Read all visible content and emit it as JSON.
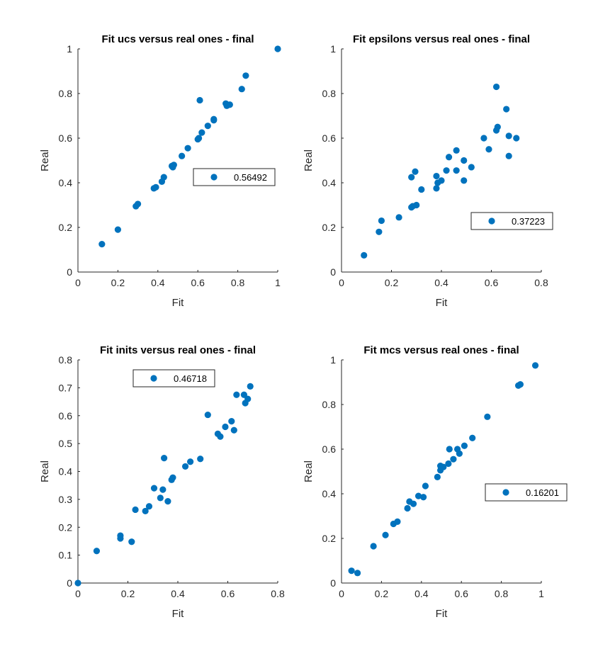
{
  "figure": {
    "background": "#ffffff",
    "marker_color": "#0072bd",
    "axis_color": "#262626"
  },
  "chart_data": [
    {
      "type": "scatter",
      "title": "Fit ucs versus real ones - final",
      "xlabel": "Fit",
      "ylabel": "Real",
      "xlim": [
        0,
        1
      ],
      "ylim": [
        0,
        1
      ],
      "xticks": [
        "0",
        "0.2",
        "0.4",
        "0.6",
        "0.8",
        "1"
      ],
      "yticks": [
        "0",
        "0.2",
        "0.4",
        "0.6",
        "0.8",
        "1"
      ],
      "legend": {
        "entries": [
          "0.56492"
        ],
        "location": "east"
      },
      "grid": false,
      "series": [
        {
          "name": "0.56492",
          "color": "#0072bd",
          "points": [
            [
              0.12,
              0.125
            ],
            [
              0.2,
              0.19
            ],
            [
              0.29,
              0.295
            ],
            [
              0.3,
              0.305
            ],
            [
              0.38,
              0.375
            ],
            [
              0.39,
              0.38
            ],
            [
              0.42,
              0.405
            ],
            [
              0.43,
              0.425
            ],
            [
              0.47,
              0.475
            ],
            [
              0.48,
              0.48
            ],
            [
              0.475,
              0.47
            ],
            [
              0.52,
              0.52
            ],
            [
              0.55,
              0.555
            ],
            [
              0.6,
              0.595
            ],
            [
              0.605,
              0.6
            ],
            [
              0.62,
              0.625
            ],
            [
              0.65,
              0.655
            ],
            [
              0.68,
              0.68
            ],
            [
              0.68,
              0.685
            ],
            [
              0.61,
              0.77
            ],
            [
              0.74,
              0.755
            ],
            [
              0.745,
              0.745
            ],
            [
              0.76,
              0.75
            ],
            [
              0.82,
              0.82
            ],
            [
              0.84,
              0.88
            ],
            [
              1.0,
              1.0
            ]
          ]
        }
      ]
    },
    {
      "type": "scatter",
      "title": "Fit epsilons versus real ones - final",
      "xlabel": "Fit",
      "ylabel": "Real",
      "xlim": [
        0,
        0.8
      ],
      "ylim": [
        0,
        1
      ],
      "xticks": [
        "0",
        "0.2",
        "0.4",
        "0.6",
        "0.8"
      ],
      "yticks": [
        "0",
        "0.2",
        "0.4",
        "0.6",
        "0.8",
        "1"
      ],
      "legend": {
        "entries": [
          "0.37223"
        ],
        "location": "southeast"
      },
      "grid": false,
      "series": [
        {
          "name": "0.37223",
          "color": "#0072bd",
          "points": [
            [
              0.09,
              0.075
            ],
            [
              0.15,
              0.18
            ],
            [
              0.16,
              0.23
            ],
            [
              0.23,
              0.245
            ],
            [
              0.28,
              0.29
            ],
            [
              0.285,
              0.295
            ],
            [
              0.3,
              0.3
            ],
            [
              0.28,
              0.425
            ],
            [
              0.295,
              0.45
            ],
            [
              0.32,
              0.37
            ],
            [
              0.38,
              0.43
            ],
            [
              0.38,
              0.375
            ],
            [
              0.385,
              0.4
            ],
            [
              0.4,
              0.41
            ],
            [
              0.42,
              0.455
            ],
            [
              0.43,
              0.515
            ],
            [
              0.46,
              0.455
            ],
            [
              0.46,
              0.545
            ],
            [
              0.49,
              0.41
            ],
            [
              0.49,
              0.5
            ],
            [
              0.52,
              0.47
            ],
            [
              0.57,
              0.6
            ],
            [
              0.59,
              0.55
            ],
            [
              0.62,
              0.635
            ],
            [
              0.625,
              0.65
            ],
            [
              0.62,
              0.83
            ],
            [
              0.66,
              0.73
            ],
            [
              0.67,
              0.52
            ],
            [
              0.67,
              0.61
            ],
            [
              0.7,
              0.6
            ]
          ]
        }
      ]
    },
    {
      "type": "scatter",
      "title": "Fit inits versus real ones - final",
      "xlabel": "Fit",
      "ylabel": "Real",
      "xlim": [
        0,
        0.8
      ],
      "ylim": [
        0,
        0.8
      ],
      "xticks": [
        "0",
        "0.2",
        "0.4",
        "0.6",
        "0.8"
      ],
      "yticks": [
        "0",
        "0.1",
        "0.2",
        "0.3",
        "0.4",
        "0.5",
        "0.6",
        "0.7",
        "0.8"
      ],
      "legend": {
        "entries": [
          "0.46718"
        ],
        "location": "north"
      },
      "grid": false,
      "series": [
        {
          "name": "0.46718",
          "color": "#0072bd",
          "points": [
            [
              0.0,
              0.0
            ],
            [
              0.075,
              0.115
            ],
            [
              0.17,
              0.17
            ],
            [
              0.17,
              0.16
            ],
            [
              0.215,
              0.148
            ],
            [
              0.23,
              0.263
            ],
            [
              0.27,
              0.258
            ],
            [
              0.285,
              0.275
            ],
            [
              0.305,
              0.34
            ],
            [
              0.33,
              0.305
            ],
            [
              0.34,
              0.335
            ],
            [
              0.345,
              0.448
            ],
            [
              0.36,
              0.293
            ],
            [
              0.375,
              0.37
            ],
            [
              0.38,
              0.378
            ],
            [
              0.43,
              0.418
            ],
            [
              0.45,
              0.435
            ],
            [
              0.49,
              0.445
            ],
            [
              0.52,
              0.603
            ],
            [
              0.56,
              0.535
            ],
            [
              0.57,
              0.525
            ],
            [
              0.59,
              0.56
            ],
            [
              0.615,
              0.58
            ],
            [
              0.625,
              0.548
            ],
            [
              0.635,
              0.675
            ],
            [
              0.665,
              0.675
            ],
            [
              0.67,
              0.645
            ],
            [
              0.68,
              0.66
            ],
            [
              0.69,
              0.705
            ]
          ]
        }
      ]
    },
    {
      "type": "scatter",
      "title": "Fit mcs versus real ones - final",
      "xlabel": "Fit",
      "ylabel": "Real",
      "xlim": [
        0,
        1
      ],
      "ylim": [
        0,
        1
      ],
      "xticks": [
        "0",
        "0.2",
        "0.4",
        "0.6",
        "0.8",
        "1"
      ],
      "yticks": [
        "0",
        "0.2",
        "0.4",
        "0.6",
        "0.8",
        "1"
      ],
      "legend": {
        "entries": [
          "0.16201"
        ],
        "location": "east"
      },
      "grid": false,
      "series": [
        {
          "name": "0.16201",
          "color": "#0072bd",
          "points": [
            [
              0.05,
              0.055
            ],
            [
              0.08,
              0.045
            ],
            [
              0.16,
              0.165
            ],
            [
              0.22,
              0.215
            ],
            [
              0.26,
              0.265
            ],
            [
              0.28,
              0.275
            ],
            [
              0.33,
              0.335
            ],
            [
              0.34,
              0.365
            ],
            [
              0.36,
              0.355
            ],
            [
              0.385,
              0.39
            ],
            [
              0.41,
              0.385
            ],
            [
              0.42,
              0.435
            ],
            [
              0.48,
              0.475
            ],
            [
              0.495,
              0.505
            ],
            [
              0.495,
              0.525
            ],
            [
              0.51,
              0.52
            ],
            [
              0.535,
              0.535
            ],
            [
              0.54,
              0.6
            ],
            [
              0.56,
              0.555
            ],
            [
              0.58,
              0.6
            ],
            [
              0.59,
              0.58
            ],
            [
              0.615,
              0.615
            ],
            [
              0.655,
              0.65
            ],
            [
              0.73,
              0.745
            ],
            [
              0.885,
              0.885
            ],
            [
              0.895,
              0.89
            ],
            [
              0.97,
              0.975
            ]
          ]
        }
      ]
    }
  ]
}
